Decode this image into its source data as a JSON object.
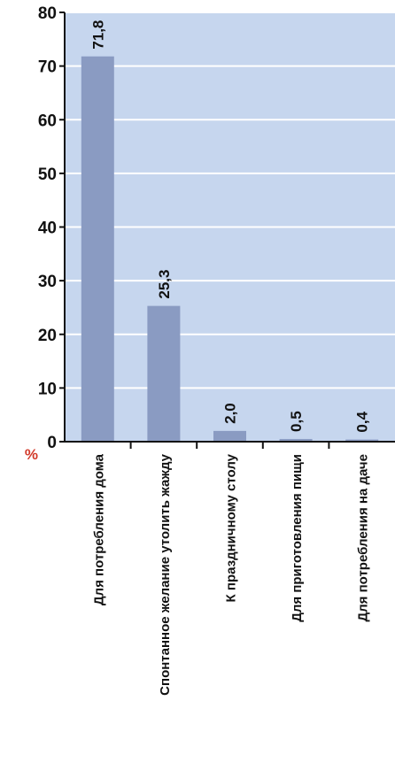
{
  "chart_data": {
    "type": "bar",
    "title": "",
    "xlabel": "",
    "ylabel": "",
    "y_unit": "%",
    "ylim": [
      0,
      80
    ],
    "yticks": [
      0,
      10,
      20,
      30,
      40,
      50,
      60,
      70,
      80
    ],
    "grid": true,
    "categories": [
      "Для потребления дома",
      "Спонтанное желание утолить жажду",
      "К праздничному столу",
      "Для приготовления пищи",
      "Для потребления на даче"
    ],
    "values": [
      71.8,
      25.3,
      2.0,
      0.5,
      0.4
    ],
    "value_labels": [
      "71,8",
      "25,3",
      "2,0",
      "0,5",
      "0,4"
    ],
    "colors": {
      "background": "#c6d6ee",
      "bar": "#8a9bc2",
      "grid": "#ffffff",
      "axis": "#111111",
      "unit": "#d23a2a"
    }
  }
}
